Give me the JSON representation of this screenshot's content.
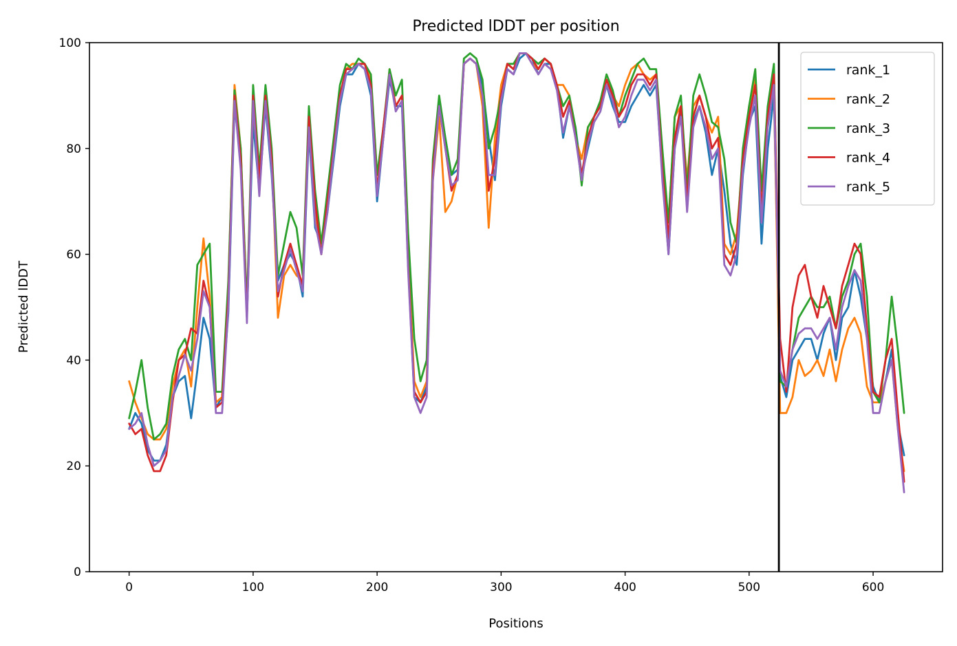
{
  "chart_data": {
    "type": "line",
    "title": "Predicted lDDT per position",
    "xlabel": "Positions",
    "ylabel": "Predicted lDDT",
    "xlim": [
      -32,
      656
    ],
    "ylim": [
      0,
      100
    ],
    "xticks": [
      0,
      100,
      200,
      300,
      400,
      500,
      600
    ],
    "yticks": [
      0,
      20,
      40,
      60,
      80,
      100
    ],
    "grid": false,
    "legend_position": "top-right",
    "vline": {
      "x": 524,
      "color": "#000000"
    },
    "x": [
      0,
      5,
      10,
      15,
      20,
      25,
      30,
      35,
      40,
      45,
      50,
      55,
      60,
      65,
      70,
      75,
      80,
      85,
      90,
      95,
      100,
      105,
      110,
      115,
      120,
      125,
      130,
      135,
      140,
      145,
      150,
      155,
      160,
      165,
      170,
      175,
      180,
      185,
      190,
      195,
      200,
      205,
      210,
      215,
      220,
      225,
      230,
      235,
      240,
      245,
      250,
      255,
      260,
      265,
      270,
      275,
      280,
      285,
      290,
      295,
      300,
      305,
      310,
      315,
      320,
      325,
      330,
      335,
      340,
      345,
      350,
      355,
      360,
      365,
      370,
      375,
      380,
      385,
      390,
      395,
      400,
      405,
      410,
      415,
      420,
      425,
      430,
      435,
      440,
      445,
      450,
      455,
      460,
      465,
      470,
      475,
      480,
      485,
      490,
      495,
      500,
      505,
      510,
      515,
      520,
      525,
      530,
      535,
      540,
      545,
      550,
      555,
      560,
      565,
      570,
      575,
      580,
      585,
      590,
      595,
      600,
      605,
      610,
      615,
      620,
      625
    ],
    "series": [
      {
        "name": "rank_1",
        "color": "#1f77b4",
        "values": [
          27,
          30,
          28,
          23,
          21,
          21,
          24,
          33,
          36,
          37,
          29,
          38,
          48,
          44,
          31,
          33,
          49,
          88,
          78,
          48,
          85,
          72,
          88,
          75,
          55,
          58,
          60,
          58,
          52,
          83,
          65,
          62,
          68,
          78,
          88,
          94,
          94,
          96,
          95,
          90,
          70,
          82,
          93,
          88,
          88,
          58,
          33,
          32,
          35,
          75,
          89,
          82,
          75,
          76,
          96,
          97,
          96,
          92,
          82,
          74,
          88,
          95,
          94,
          97,
          98,
          97,
          94,
          96,
          96,
          92,
          82,
          88,
          84,
          75,
          80,
          85,
          87,
          92,
          88,
          85,
          85,
          88,
          90,
          92,
          90,
          92,
          75,
          60,
          80,
          87,
          70,
          85,
          88,
          83,
          75,
          80,
          72,
          62,
          58,
          75,
          85,
          88,
          62,
          80,
          90,
          37,
          33,
          40,
          42,
          44,
          44,
          40,
          45,
          48,
          40,
          48,
          50,
          57,
          52,
          44,
          35,
          32,
          36,
          42,
          28,
          22
        ]
      },
      {
        "name": "rank_2",
        "color": "#ff7f0e",
        "values": [
          36,
          32,
          29,
          26,
          25,
          25,
          27,
          35,
          40,
          42,
          35,
          50,
          63,
          52,
          32,
          33,
          54,
          92,
          80,
          50,
          88,
          74,
          90,
          78,
          48,
          56,
          58,
          56,
          55,
          85,
          68,
          60,
          70,
          80,
          90,
          95,
          96,
          96,
          96,
          93,
          75,
          82,
          95,
          88,
          90,
          60,
          36,
          33,
          36,
          74,
          86,
          68,
          70,
          75,
          96,
          97,
          96,
          88,
          65,
          82,
          92,
          96,
          95,
          98,
          98,
          96,
          95,
          97,
          96,
          92,
          92,
          90,
          82,
          78,
          84,
          86,
          88,
          93,
          90,
          88,
          92,
          95,
          96,
          94,
          93,
          94,
          78,
          66,
          86,
          88,
          74,
          88,
          90,
          86,
          83,
          86,
          62,
          60,
          64,
          78,
          88,
          93,
          70,
          85,
          92,
          30,
          30,
          33,
          40,
          37,
          38,
          40,
          37,
          42,
          36,
          42,
          46,
          48,
          45,
          35,
          32,
          32,
          36,
          40,
          27,
          19
        ]
      },
      {
        "name": "rank_3",
        "color": "#2ca02c",
        "values": [
          29,
          34,
          40,
          31,
          25,
          26,
          28,
          37,
          42,
          44,
          40,
          58,
          60,
          62,
          34,
          34,
          55,
          91,
          80,
          50,
          92,
          76,
          92,
          80,
          56,
          62,
          68,
          65,
          56,
          88,
          72,
          62,
          72,
          82,
          92,
          96,
          95,
          97,
          96,
          94,
          75,
          84,
          95,
          90,
          93,
          64,
          44,
          36,
          40,
          78,
          90,
          82,
          75,
          78,
          97,
          98,
          97,
          93,
          80,
          84,
          90,
          96,
          96,
          98,
          98,
          97,
          96,
          97,
          96,
          92,
          88,
          90,
          84,
          73,
          84,
          86,
          89,
          94,
          91,
          86,
          90,
          93,
          96,
          97,
          95,
          95,
          80,
          66,
          86,
          90,
          72,
          90,
          94,
          90,
          85,
          84,
          78,
          66,
          62,
          80,
          88,
          95,
          72,
          88,
          96,
          36,
          35,
          42,
          48,
          50,
          52,
          50,
          50,
          52,
          46,
          52,
          55,
          60,
          62,
          52,
          34,
          32,
          40,
          52,
          42,
          30
        ]
      },
      {
        "name": "rank_4",
        "color": "#d62728",
        "values": [
          28,
          26,
          27,
          22,
          19,
          19,
          22,
          32,
          40,
          41,
          46,
          45,
          55,
          50,
          31,
          32,
          52,
          90,
          78,
          48,
          90,
          74,
          90,
          78,
          52,
          58,
          62,
          58,
          54,
          86,
          70,
          60,
          70,
          80,
          90,
          95,
          95,
          96,
          96,
          92,
          72,
          84,
          94,
          88,
          90,
          58,
          34,
          32,
          34,
          76,
          88,
          80,
          72,
          75,
          96,
          97,
          96,
          90,
          72,
          78,
          90,
          96,
          95,
          98,
          98,
          97,
          95,
          97,
          96,
          92,
          86,
          89,
          82,
          75,
          82,
          86,
          88,
          93,
          90,
          86,
          88,
          92,
          94,
          94,
          92,
          94,
          76,
          63,
          82,
          88,
          70,
          86,
          90,
          86,
          80,
          82,
          60,
          58,
          62,
          78,
          86,
          92,
          68,
          86,
          94,
          44,
          34,
          50,
          56,
          58,
          52,
          48,
          54,
          50,
          46,
          54,
          58,
          62,
          60,
          46,
          34,
          33,
          40,
          44,
          30,
          17
        ]
      },
      {
        "name": "rank_5",
        "color": "#9467bd",
        "values": [
          27,
          28,
          30,
          24,
          20,
          21,
          23,
          33,
          37,
          41,
          38,
          44,
          53,
          50,
          30,
          30,
          50,
          89,
          76,
          47,
          89,
          71,
          89,
          76,
          53,
          57,
          61,
          57,
          53,
          84,
          66,
          60,
          68,
          79,
          89,
          94,
          95,
          96,
          95,
          91,
          71,
          82,
          94,
          87,
          89,
          57,
          33,
          30,
          33,
          74,
          88,
          80,
          73,
          74,
          96,
          97,
          96,
          90,
          75,
          75,
          89,
          95,
          94,
          98,
          98,
          96,
          94,
          96,
          95,
          91,
          83,
          88,
          82,
          74,
          81,
          85,
          87,
          92,
          89,
          84,
          86,
          90,
          93,
          93,
          91,
          93,
          74,
          60,
          80,
          86,
          68,
          84,
          88,
          84,
          78,
          80,
          58,
          56,
          60,
          76,
          84,
          90,
          66,
          84,
          92,
          38,
          35,
          42,
          45,
          46,
          46,
          44,
          46,
          48,
          42,
          50,
          54,
          57,
          55,
          44,
          30,
          30,
          36,
          40,
          27,
          15
        ]
      }
    ]
  }
}
